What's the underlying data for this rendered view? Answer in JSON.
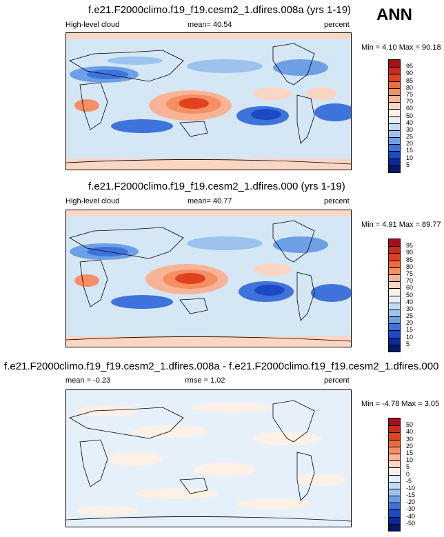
{
  "season": "ANN",
  "panels": [
    {
      "title": "f.e21.F2000climo.f19_f19.cesm2_1.dfires.008a (yrs 1-19)",
      "left_label": "High-level cloud",
      "stat": "mean=  40.54",
      "units": "percent",
      "minmax": "Min =   4.10 Max =  90.18"
    },
    {
      "title": "f.e21.F2000climo.f19_f19.cesm2_1.dfires.000 (yrs 1-19)",
      "left_label": "High-level cloud",
      "stat": "mean=  40.77",
      "units": "percent",
      "minmax": "Min =   4.91 Max =  89.77"
    },
    {
      "title": "f.e21.F2000climo.f19_f19.cesm2_1.dfires.008a - f.e21.F2000climo.f19_f19.cesm2_1.dfires.000",
      "left_label": "mean =  -0.23",
      "stat": "rmse =   1.02",
      "units": "percent",
      "minmax": "Min =  -4.78 Max =   3.05"
    }
  ],
  "colorbar_abs": {
    "labels": [
      "95",
      "90",
      "85",
      "80",
      "75",
      "70",
      "60",
      "50",
      "40",
      "30",
      "25",
      "20",
      "15",
      "10",
      "5"
    ],
    "colors": [
      "#a50f15",
      "#cb2a1e",
      "#e0421f",
      "#ef6a3c",
      "#f68f63",
      "#f9b497",
      "#fbd6c3",
      "#fdf0e6",
      "#e6f0fa",
      "#c4dcf3",
      "#9cc3ee",
      "#6d9fe6",
      "#3e73dc",
      "#1c49c4",
      "#0a2a9a",
      "#001a66"
    ]
  },
  "colorbar_diff": {
    "labels": [
      "50",
      "40",
      "30",
      "20",
      "15",
      "10",
      "5",
      "0",
      "-5",
      "-10",
      "-15",
      "-20",
      "-30",
      "-40",
      "-50"
    ],
    "colors": [
      "#a50f15",
      "#cb2a1e",
      "#e0421f",
      "#ef6a3c",
      "#f68f63",
      "#f9b497",
      "#fbd6c3",
      "#fdf0e6",
      "#e6f0fa",
      "#c4dcf3",
      "#9cc3ee",
      "#6d9fe6",
      "#3e73dc",
      "#1c49c4",
      "#0a2a9a",
      "#001a66"
    ]
  }
}
